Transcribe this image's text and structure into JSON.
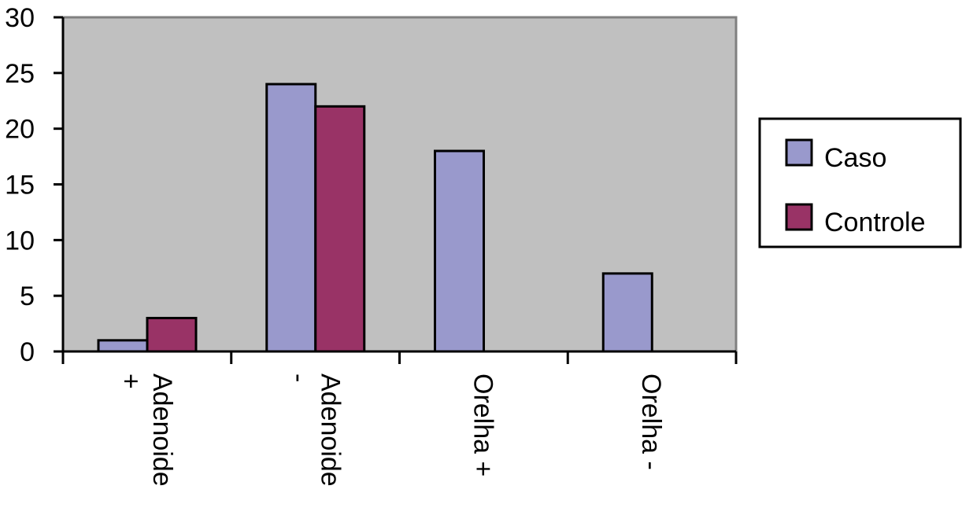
{
  "chart_data": {
    "type": "bar",
    "categories": [
      [
        "Adenoide",
        "+"
      ],
      [
        "Adenoide",
        "-"
      ],
      [
        "Orelha +"
      ],
      [
        "Orelha -"
      ]
    ],
    "series": [
      {
        "name": "Caso",
        "values": [
          1,
          24,
          18,
          7
        ],
        "color": "#9999cc"
      },
      {
        "name": "Controle",
        "values": [
          3,
          22,
          0,
          0
        ],
        "color": "#993366"
      }
    ],
    "ylim": [
      0,
      30
    ],
    "yticks": [
      0,
      5,
      10,
      15,
      20,
      25,
      30
    ],
    "grid": false,
    "plot_background": "#c0c0c0",
    "legend_position": "right"
  }
}
